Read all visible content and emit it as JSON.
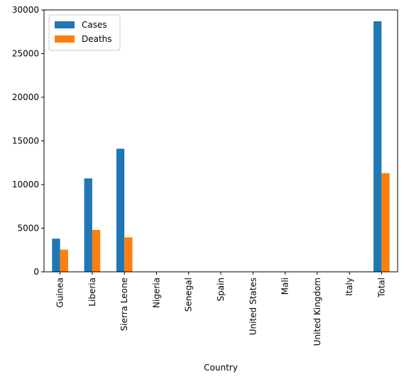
{
  "chart_data": {
    "type": "bar",
    "xlabel": "Country",
    "ylabel": "",
    "title": "",
    "categories": [
      "Guinea",
      "Liberia",
      "Sierra Leone",
      "Nigeria",
      "Senegal",
      "Spain",
      "United States",
      "Mali",
      "United Kingdom",
      "Italy",
      "Total"
    ],
    "series": [
      {
        "name": "Cases",
        "color": "#1f77b4",
        "values": [
          3800,
          10700,
          14100,
          20,
          1,
          1,
          4,
          8,
          1,
          1,
          28700
        ]
      },
      {
        "name": "Deaths",
        "color": "#ff7f0e",
        "values": [
          2540,
          4800,
          3950,
          8,
          0,
          0,
          1,
          6,
          0,
          0,
          11300
        ]
      }
    ],
    "ylim": [
      0,
      30000
    ],
    "yticks": [
      0,
      5000,
      10000,
      15000,
      20000,
      25000,
      30000
    ],
    "grid": false,
    "legend_position": "top-left"
  }
}
